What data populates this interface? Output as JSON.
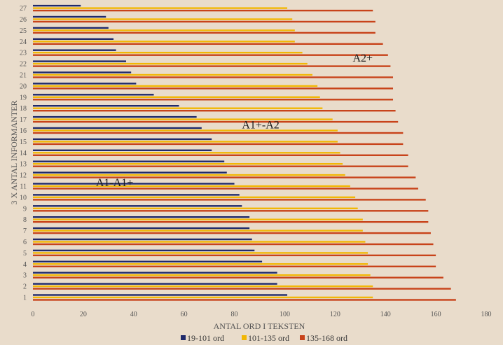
{
  "chart_data": {
    "type": "bar",
    "orientation": "horizontal",
    "title": "",
    "xlabel": "ANTAL ORD I TEKSTEN",
    "ylabel": "3 X ANTAL INFORMANTER",
    "xlim": [
      0,
      180
    ],
    "xticks": [
      0,
      20,
      40,
      60,
      80,
      100,
      120,
      140,
      160,
      180
    ],
    "categories": [
      "1",
      "2",
      "3",
      "4",
      "5",
      "6",
      "7",
      "8",
      "9",
      "10",
      "11",
      "12",
      "13",
      "14",
      "15",
      "16",
      "17",
      "18",
      "19",
      "20",
      "21",
      "22",
      "23",
      "24",
      "25",
      "26",
      "27"
    ],
    "series": [
      {
        "name": "19-101 ord",
        "color": "#1f2a6b",
        "values": [
          101,
          97,
          97,
          91,
          88,
          87,
          86,
          86,
          83,
          82,
          80,
          77,
          76,
          71,
          71,
          67,
          65,
          58,
          48,
          41,
          39,
          37,
          33,
          32,
          30,
          29,
          19
        ]
      },
      {
        "name": "101-135 ord",
        "color": "#f2b705",
        "values": [
          135,
          135,
          134,
          133,
          133,
          132,
          131,
          131,
          129,
          128,
          126,
          124,
          123,
          122,
          121,
          121,
          119,
          115,
          114,
          113,
          111,
          109,
          107,
          104,
          104,
          103,
          101
        ]
      },
      {
        "name": "135-168 ord",
        "color": "#c8431a",
        "values": [
          168,
          166,
          163,
          160,
          160,
          159,
          158,
          157,
          157,
          156,
          153,
          152,
          149,
          149,
          147,
          147,
          145,
          144,
          143,
          143,
          143,
          142,
          141,
          139,
          136,
          136,
          135
        ]
      }
    ],
    "annotations": [
      {
        "text": "A2+",
        "x": 127,
        "row": 22.5
      },
      {
        "text": "A1+-A2",
        "x": 83,
        "row": 16.5
      },
      {
        "text": "A1-A1+",
        "x": 25,
        "row": 11.3
      }
    ],
    "legend_position": "bottom",
    "grid": false
  }
}
